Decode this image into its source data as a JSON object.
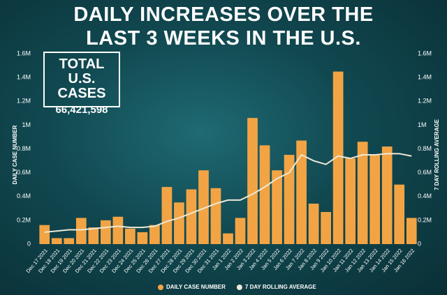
{
  "chart_data": {
    "type": "bar",
    "title": "DAILY INCREASES OVER THE LAST 3 WEEKS IN THE U.S.",
    "annotation": {
      "title": "TOTAL U.S. CASES",
      "value": "66,421,598"
    },
    "y_label": "DAILY CASE NUMBER",
    "y2_label": "7 DAY ROLLING AVERAGE",
    "categories": [
      "Dec 17 2021",
      "Dec 18 2021",
      "Dec 19 2021",
      "Dec 20 2021",
      "Dec 21 2021",
      "Dec 22 2021",
      "Dec 23 2021",
      "Dec 24 2021",
      "Dec 25 2021",
      "Dec 26 2021",
      "Dec 27 2021",
      "Dec 28 2021",
      "Dec 29 2021",
      "Dec 30 2021",
      "Dec 31 2021",
      "Jan 1 2022",
      "Jan 2 2022",
      "Jan 3 2022",
      "Jan 4 2022",
      "Jan 5 2022",
      "Jan 6 2022",
      "Jan 7 2022",
      "Jan 8 2022",
      "Jan 9 2022",
      "Jan 10 2022",
      "Jan 11 2022",
      "Jan 12 2022",
      "Jan 13 2022",
      "Jan 14 2022",
      "Jan 15 2022",
      "Jan 16 2022"
    ],
    "series": [
      {
        "name": "DAILY CASE NUMBER",
        "type": "bar",
        "color": "#f2a444",
        "values": [
          0.16,
          0.05,
          0.05,
          0.22,
          0.14,
          0.2,
          0.23,
          0.13,
          0.1,
          0.16,
          0.48,
          0.35,
          0.46,
          0.62,
          0.47,
          0.09,
          0.22,
          1.06,
          0.83,
          0.62,
          0.75,
          0.87,
          0.34,
          0.27,
          1.45,
          0.72,
          0.86,
          0.75,
          0.82,
          0.5,
          0.22
        ]
      },
      {
        "name": "7 DAY ROLLING AVERAGE",
        "type": "line",
        "color": "#efe8d6",
        "values": [
          0.1,
          0.11,
          0.12,
          0.12,
          0.13,
          0.14,
          0.15,
          0.14,
          0.14,
          0.15,
          0.19,
          0.22,
          0.26,
          0.3,
          0.34,
          0.37,
          0.37,
          0.42,
          0.48,
          0.55,
          0.6,
          0.75,
          0.7,
          0.67,
          0.74,
          0.72,
          0.75,
          0.75,
          0.76,
          0.76,
          0.74
        ]
      }
    ],
    "ylim": [
      0,
      1.6
    ],
    "yticks": [
      0,
      {
        "value": 0.2,
        "label": "0.2M"
      },
      {
        "value": 0.4,
        "label": "0.4M"
      },
      {
        "value": 0.6,
        "label": "0.6M"
      },
      {
        "value": 0.8,
        "label": "0.8M"
      },
      {
        "value": 1,
        "label": "1M"
      },
      {
        "value": 1.2,
        "label": "1.2M"
      },
      {
        "value": 1.4,
        "label": "1.4M"
      },
      {
        "value": 1.6,
        "label": "1.6M"
      }
    ],
    "y2lim": [
      0,
      1.6
    ],
    "y2ticks": [
      0,
      {
        "value": 0.2,
        "label": "0.2M"
      },
      {
        "value": 0.4,
        "label": "0.4M"
      },
      {
        "value": 0.6,
        "label": "0.6M"
      },
      {
        "value": 0.8,
        "label": "0.8M"
      },
      {
        "value": 1,
        "label": "1M"
      },
      {
        "value": 1.2,
        "label": "1.2M"
      },
      {
        "value": 1.4,
        "label": "1.4M"
      },
      {
        "value": 1.6,
        "label": "1.6M"
      }
    ],
    "legend": "bottom"
  }
}
